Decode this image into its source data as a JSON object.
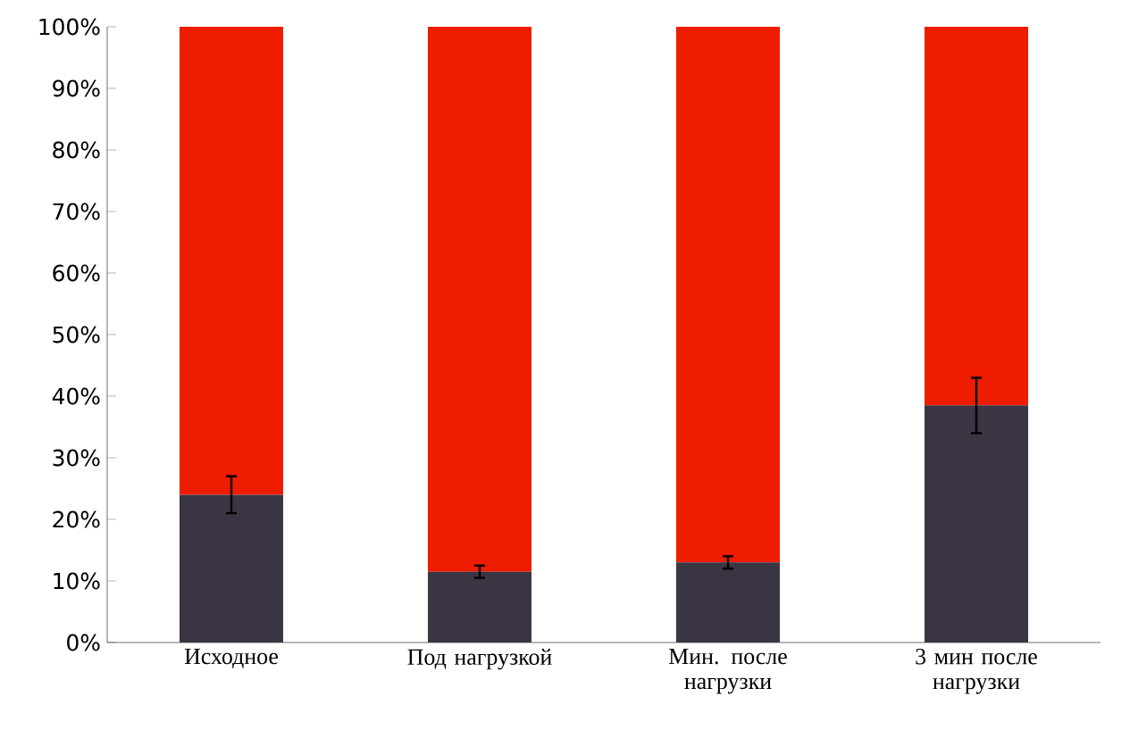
{
  "chart_data": {
    "type": "bar",
    "stacked": true,
    "categories": [
      "Исходное",
      "Под нагрузкой",
      "Мин. после нагрузки",
      "3 мин после нагрузки"
    ],
    "series": [
      {
        "color": "#3b3442",
        "values": [
          24,
          11.5,
          13,
          38.5
        ],
        "errors": [
          3,
          1,
          1,
          4.5
        ]
      },
      {
        "color": "#ee1c00",
        "values": [
          76,
          88.5,
          87,
          61.5
        ]
      }
    ],
    "ylim": [
      0,
      100
    ],
    "yticks": [
      {
        "value": 0,
        "label": "0%"
      },
      {
        "value": 10,
        "label": "10%"
      },
      {
        "value": 20,
        "label": "20%"
      },
      {
        "value": 30,
        "label": "30%"
      },
      {
        "value": 40,
        "label": "40%"
      },
      {
        "value": 50,
        "label": "50%"
      },
      {
        "value": 60,
        "label": "60%"
      },
      {
        "value": 70,
        "label": "70%"
      },
      {
        "value": 80,
        "label": "80%"
      },
      {
        "value": 90,
        "label": "90%"
      },
      {
        "value": 100,
        "label": "100%"
      }
    ],
    "grid": false
  }
}
